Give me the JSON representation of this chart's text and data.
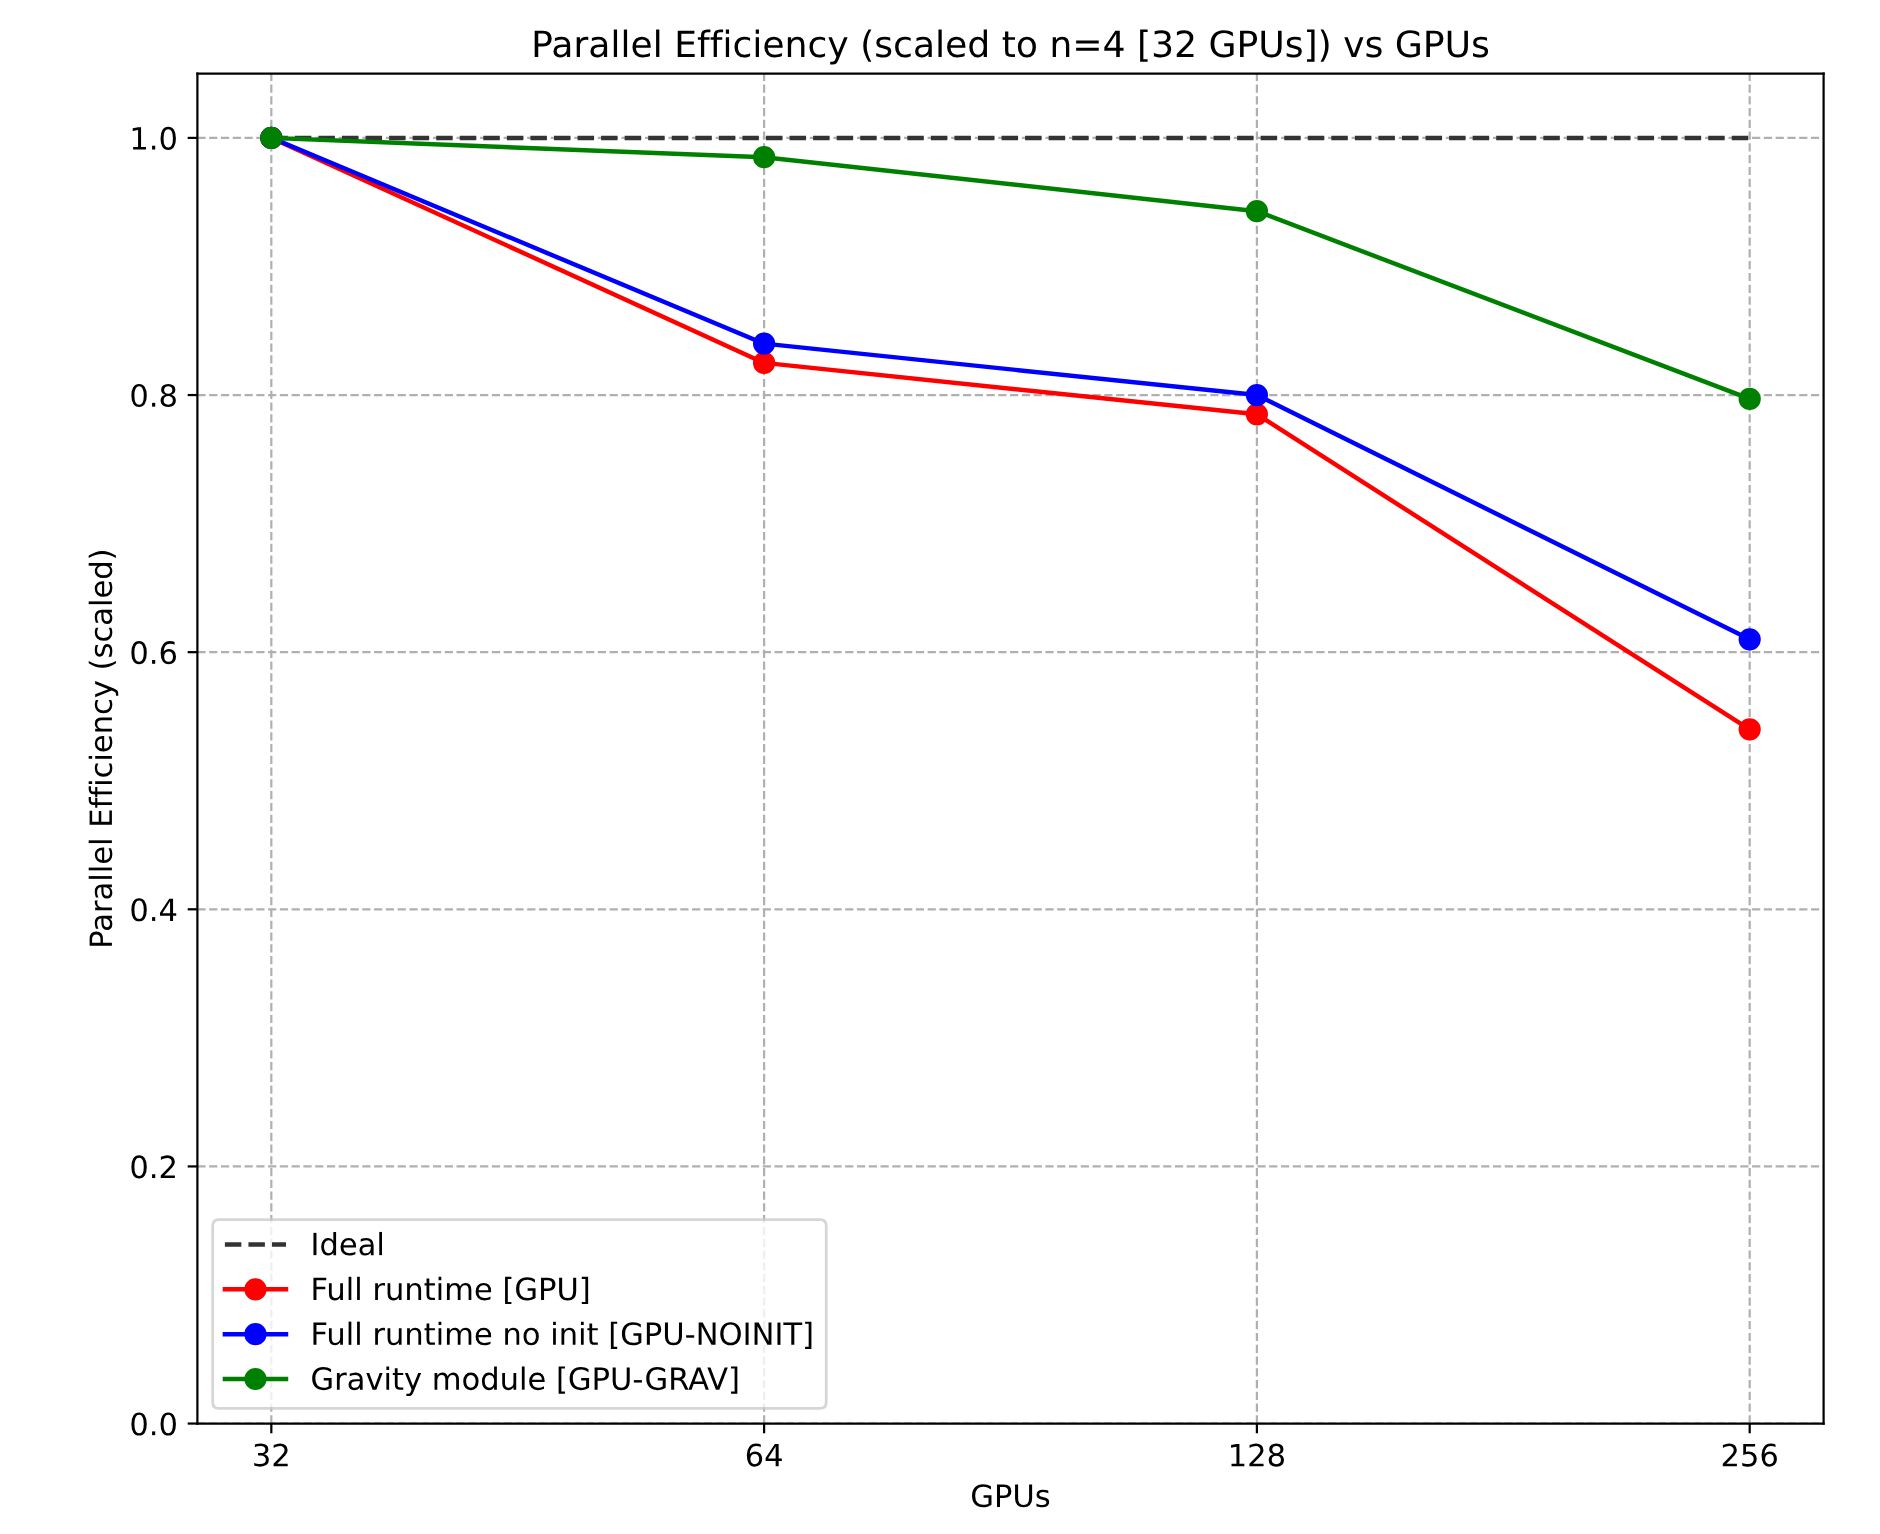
{
  "chart_data": {
    "type": "line",
    "title": "Parallel Efficiency (scaled to n=4 [32 GPUs]) vs GPUs",
    "xlabel": "GPUs",
    "ylabel": "Parallel Efficiency (scaled)",
    "categories": [
      "32",
      "64",
      "128",
      "256"
    ],
    "series": [
      {
        "name": "Ideal",
        "color": "#333333",
        "values": [
          1.0,
          1.0,
          1.0,
          1.0
        ],
        "line_style": "dashed",
        "marker": "none"
      },
      {
        "name": "Full runtime [GPU]",
        "color": "#ff0000",
        "values": [
          1.0,
          0.825,
          0.785,
          0.54
        ],
        "line_style": "solid",
        "marker": "circle"
      },
      {
        "name": "Full runtime no init [GPU-NOINIT]",
        "color": "#0000ff",
        "values": [
          1.0,
          0.84,
          0.8,
          0.61
        ],
        "line_style": "solid",
        "marker": "circle"
      },
      {
        "name": "Gravity module [GPU-GRAV]",
        "color": "#008000",
        "values": [
          1.0,
          0.985,
          0.943,
          0.797
        ],
        "line_style": "solid",
        "marker": "circle"
      }
    ],
    "ylim": [
      0,
      1.05
    ],
    "yticks": [
      {
        "value": 0,
        "label": "0.0"
      },
      0.2,
      0.4,
      0.6,
      0.8,
      {
        "value": 1,
        "label": "1.0"
      }
    ],
    "grid": true,
    "legend": "bottom left"
  }
}
